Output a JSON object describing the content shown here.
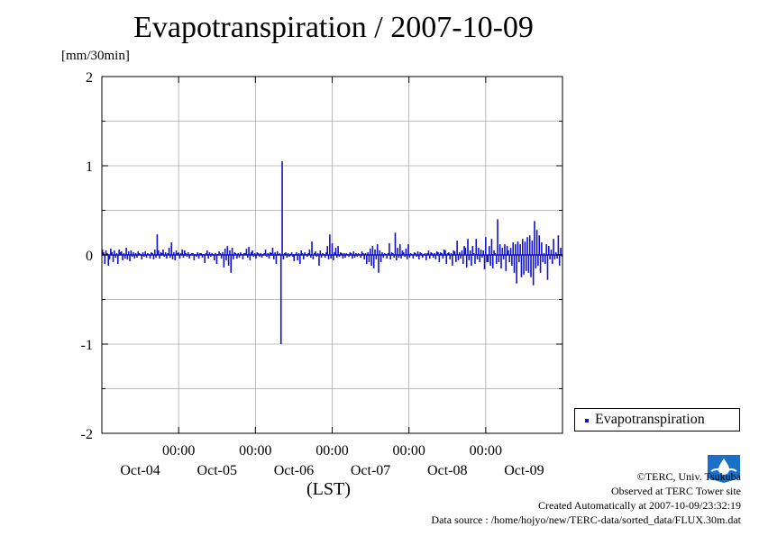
{
  "chart_data": {
    "type": "bar",
    "title": "Evapotranspiration / 2007-10-09",
    "ylabel": "[mm/30min]",
    "xlabel": "(LST)",
    "ylim": [
      -2,
      2
    ],
    "y_ticks": [
      "2",
      "1",
      "0",
      "-1",
      "-2"
    ],
    "x_ticks": [
      {
        "time": "00:00",
        "date": "Oct-05"
      },
      {
        "time": "00:00",
        "date": "Oct-06"
      },
      {
        "time": "00:00",
        "date": "Oct-07"
      },
      {
        "time": "00:00",
        "date": "Oct-08"
      },
      {
        "time": "00:00",
        "date": "Oct-09"
      }
    ],
    "date_labels": [
      "Oct-04",
      "Oct-05",
      "Oct-06",
      "Oct-07",
      "Oct-08",
      "Oct-09"
    ],
    "grid": true,
    "legend_position": "bottom-right",
    "series": [
      {
        "name": "Evapotranspiration",
        "color": "#1010c8",
        "x_start": "2007-10-04 00:00",
        "interval": "30min",
        "values": [
          0.06,
          0.03,
          -0.1,
          0.05,
          0.02,
          -0.12,
          -0.05,
          0.07,
          0.03,
          -0.08,
          0.05,
          -0.03,
          0.02,
          -0.1,
          0.06,
          0.03,
          0.04,
          -0.06,
          0.02,
          -0.04,
          0.08,
          -0.05,
          0.04,
          -0.07,
          0.05,
          -0.02,
          0.03,
          -0.04,
          0.02,
          -0.03,
          0.04,
          0.02,
          0.01,
          -0.05,
          0.03,
          -0.02,
          0.04,
          -0.03,
          0.02,
          0.01,
          -0.04,
          0.03,
          0.02,
          -0.05,
          0.06,
          -0.03,
          0.23,
          0.05,
          -0.04,
          0.03,
          0.02,
          0.06,
          -0.02,
          0.03,
          -0.04,
          0.02,
          0.08,
          -0.03,
          0.14,
          -0.05,
          0.03,
          -0.06,
          0.05,
          0.02,
          0.03,
          -0.04,
          0.02,
          0.06,
          -0.03,
          0.05,
          0.02,
          -0.02,
          0.03,
          -0.04,
          0.01,
          0.02,
          0.02,
          -0.06,
          0.01,
          -0.02,
          0.03,
          -0.04,
          0.02,
          0.02,
          -0.03,
          0.01,
          -0.09,
          0.02,
          0.05,
          -0.04,
          0.03,
          -0.02,
          0.02,
          0.01,
          -0.06,
          0.02,
          -0.1,
          0.01,
          0.04,
          0.02,
          -0.04,
          0.03,
          -0.14,
          0.07,
          -0.06,
          0.1,
          -0.12,
          0.05,
          -0.2,
          0.08,
          -0.05,
          0.03,
          0.02,
          -0.04,
          0.02,
          -0.03,
          0.03,
          0.01,
          -0.05,
          0.02,
          0.02,
          0.07,
          -0.03,
          0.09,
          -0.06,
          0.03,
          0.05,
          -0.02,
          0.02,
          -0.04,
          0.03,
          0.02,
          -0.02,
          0.02,
          -0.03,
          0.01,
          0.02,
          0.06,
          -0.02,
          0.02,
          -0.04,
          0.03,
          0.02,
          0.08,
          -0.05,
          0.03,
          -0.1,
          0.04,
          0.01,
          0.02,
          -1.0,
          1.05,
          -0.05,
          0.02,
          0.03,
          -0.03,
          0.02,
          -0.02,
          0.01,
          0.03,
          -0.02,
          -0.07,
          0.01,
          0.03,
          -0.06,
          0.02,
          -0.1,
          0.05,
          0.02,
          -0.05,
          0.03,
          0.01,
          -0.02,
          0.02,
          0.06,
          -0.03,
          0.15,
          -0.05,
          0.02,
          0.04,
          -0.02,
          0.02,
          -0.12,
          0.05,
          -0.03,
          0.02,
          0.01,
          -0.03,
          0.03,
          0.1,
          -0.05,
          0.23,
          -0.04,
          0.13,
          -0.06,
          0.03,
          0.08,
          -0.03,
          0.1,
          -0.02,
          0.03,
          0.02,
          -0.04,
          0.02,
          -0.03,
          0.02,
          0.01,
          -0.02,
          0.03,
          0.02,
          -0.04,
          0.04,
          -0.03,
          0.02,
          -0.02,
          0.02,
          0.01,
          -0.03,
          0.04,
          0.02,
          -0.05,
          0.02,
          -0.1,
          0.03,
          -0.08,
          0.07,
          -0.12,
          0.1,
          -0.15,
          0.06,
          -0.05,
          0.12,
          -0.2,
          0.05,
          -0.08,
          0.03,
          -0.03,
          0.02,
          0.01,
          -0.04,
          0.02,
          0.13,
          -0.05,
          0.03,
          0.02,
          -0.03,
          0.25,
          -0.06,
          0.08,
          -0.03,
          0.12,
          -0.04,
          0.05,
          0.03,
          -0.02,
          0.07,
          -0.05,
          0.12,
          -0.03,
          0.02,
          0.01,
          -0.04,
          0.03,
          0.02,
          -0.02,
          0.04,
          -0.05,
          0.03,
          0.02,
          -0.03,
          0.01,
          0.02,
          -0.06,
          0.02,
          0.05,
          -0.04,
          0.03,
          0.02,
          -0.03,
          0.02,
          -0.05,
          0.04,
          0.03,
          -0.08,
          0.03,
          0.02,
          -0.04,
          0.06,
          0.05,
          -0.1,
          0.02,
          0.03,
          -0.05,
          0.02,
          -0.12,
          0.05,
          0.04,
          -0.08,
          0.16,
          -0.06,
          0.03,
          -0.04,
          0.05,
          -0.1,
          0.1,
          0.08,
          -0.14,
          0.18,
          -0.06,
          0.05,
          -0.12,
          0.1,
          0.02,
          -0.1,
          0.18,
          -0.05,
          0.08,
          -0.08,
          0.06,
          -0.03,
          0.05,
          -0.16,
          0.2,
          -0.08,
          -0.08,
          0.1,
          -0.12,
          0.18,
          -0.15,
          0.05,
          0.02,
          -0.1,
          0.4,
          -0.08,
          0.12,
          -0.15,
          0.08,
          -0.05,
          0.12,
          -0.18,
          0.1,
          0.05,
          -0.08,
          0.08,
          -0.12,
          0.14,
          -0.2,
          0.12,
          -0.32,
          0.15,
          -0.08,
          0.12,
          -0.25,
          0.18,
          -0.22,
          0.15,
          -0.18,
          0.2,
          -0.2,
          0.22,
          -0.25,
          0.16,
          -0.34,
          0.38,
          -0.15,
          0.28,
          -0.12,
          0.22,
          -0.2,
          0.14,
          -0.08,
          0.02,
          -0.1,
          0.12,
          -0.28,
          0.1,
          -0.05,
          0.06,
          -0.1,
          0.18,
          -0.05,
          0.03,
          -0.04,
          0.22,
          -0.12,
          0.08,
          -0.02
        ]
      }
    ]
  },
  "credits": {
    "line1": "©TERC, Univ. Tsukuba",
    "line2": "Observed at TERC Tower site",
    "line3": "Created Automatically at 2007-10-09/23:32:19",
    "line4": "Data source : /home/hojyo/new/TERC-data/sorted_data/FLUX.30m.dat"
  },
  "logo": {
    "icon": "terc-logo",
    "color": "#1a6fc8",
    "text": "TERC"
  }
}
